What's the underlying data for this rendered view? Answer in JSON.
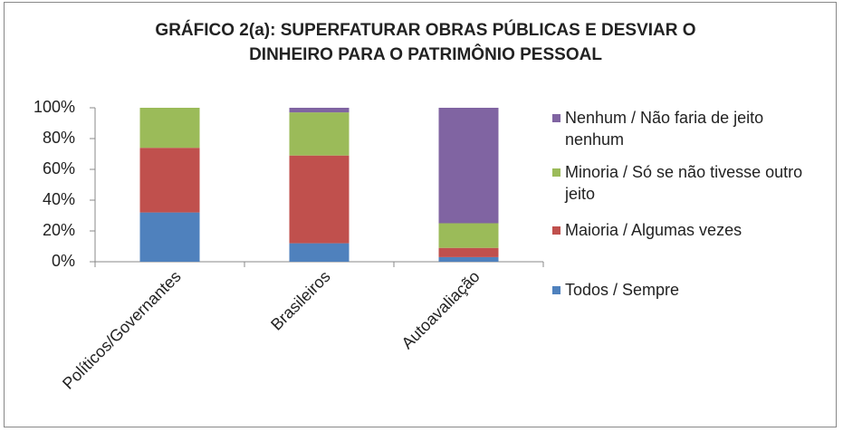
{
  "chart_data": {
    "type": "stacked_bar",
    "title": "GRÁFICO 2(a): SUPERFATURAR OBRAS PÚBLICAS E DESVIAR O DINHEIRO PARA O PATRIMÔNIO PESSOAL",
    "categories": [
      "Políticos/Governantes",
      "Brasileiros",
      "Autoavaliação"
    ],
    "series": [
      {
        "name": "Todos / Sempre",
        "color": "#4f81bd",
        "values": [
          32,
          12,
          3
        ]
      },
      {
        "name": "Maioria / Algumas vezes",
        "color": "#c0504d",
        "values": [
          42,
          57,
          6
        ]
      },
      {
        "name": "Minoria / Só se não tivesse outro jeito",
        "color": "#9bbb59",
        "values": [
          26,
          28,
          16
        ]
      },
      {
        "name": "Nenhum / Não faria de jeito nenhum",
        "color": "#8064a2",
        "values": [
          0,
          3,
          75
        ]
      }
    ],
    "ylim": [
      0,
      100
    ],
    "yticks": [
      {
        "value": 0,
        "label": "0%"
      },
      {
        "value": 20,
        "label": "20%"
      },
      {
        "value": 40,
        "label": "40%"
      },
      {
        "value": 60,
        "label": "60%"
      },
      {
        "value": 80,
        "label": "80%"
      },
      {
        "value": 100,
        "label": "100%"
      }
    ],
    "grid": false,
    "legend": "right"
  }
}
